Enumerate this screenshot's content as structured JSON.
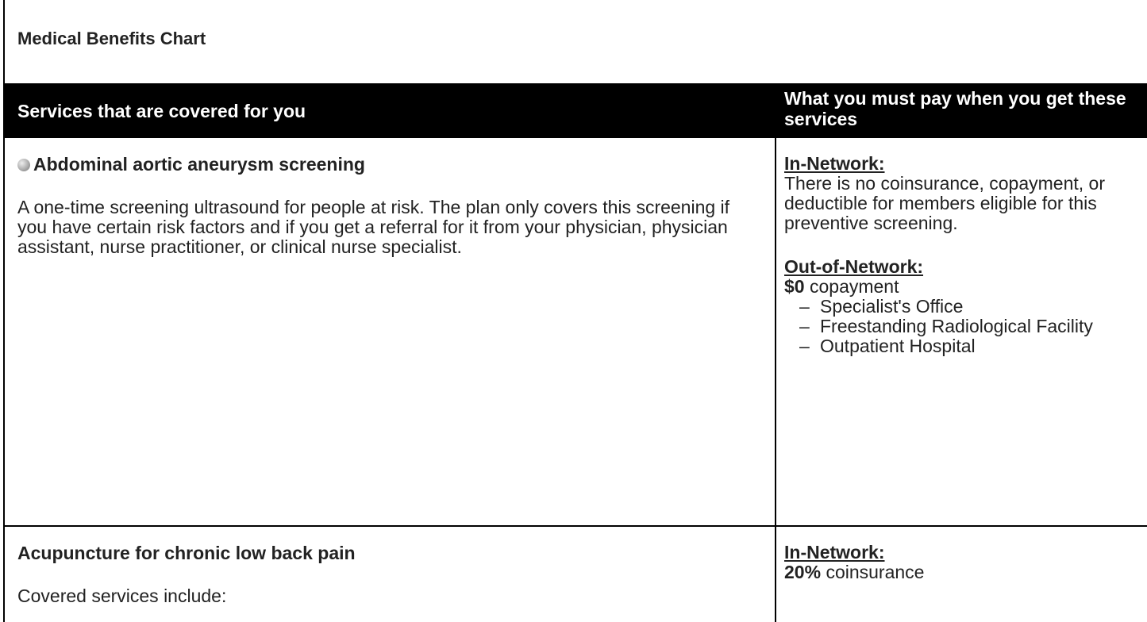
{
  "header": {
    "title": "Medical Benefits Chart"
  },
  "table": {
    "headers": [
      "Services that are covered for you",
      "What you must pay when you get these services"
    ],
    "rows": [
      {
        "service": {
          "title": "Abdominal aortic aneurysm screening",
          "paragraphs": [
            "A one-time screening ultrasound for people at risk. The plan only covers this screening if you have certain risk factors and if you get a referral for it from your physician, physician assistant, nurse practitioner, or clinical nurse specialist."
          ]
        },
        "cost": [
          {
            "heading": "In-Network:",
            "text": "There is no coinsurance, copayment, or deductible for members eligible for this preventive screening."
          },
          {
            "heading": "Out-of-Network:",
            "amount": "$0",
            "text": "copayment",
            "items": [
              "Specialist's Office",
              "Freestanding Radiological Facility",
              "Outpatient Hospital"
            ]
          }
        ]
      },
      {
        "service": {
          "title": "Acupuncture for chronic low back pain",
          "paragraphs": [
            "Covered services include:"
          ]
        },
        "cost": [
          {
            "heading": "In-Network:",
            "amount": "20%",
            "text": "coinsurance"
          }
        ]
      }
    ]
  }
}
